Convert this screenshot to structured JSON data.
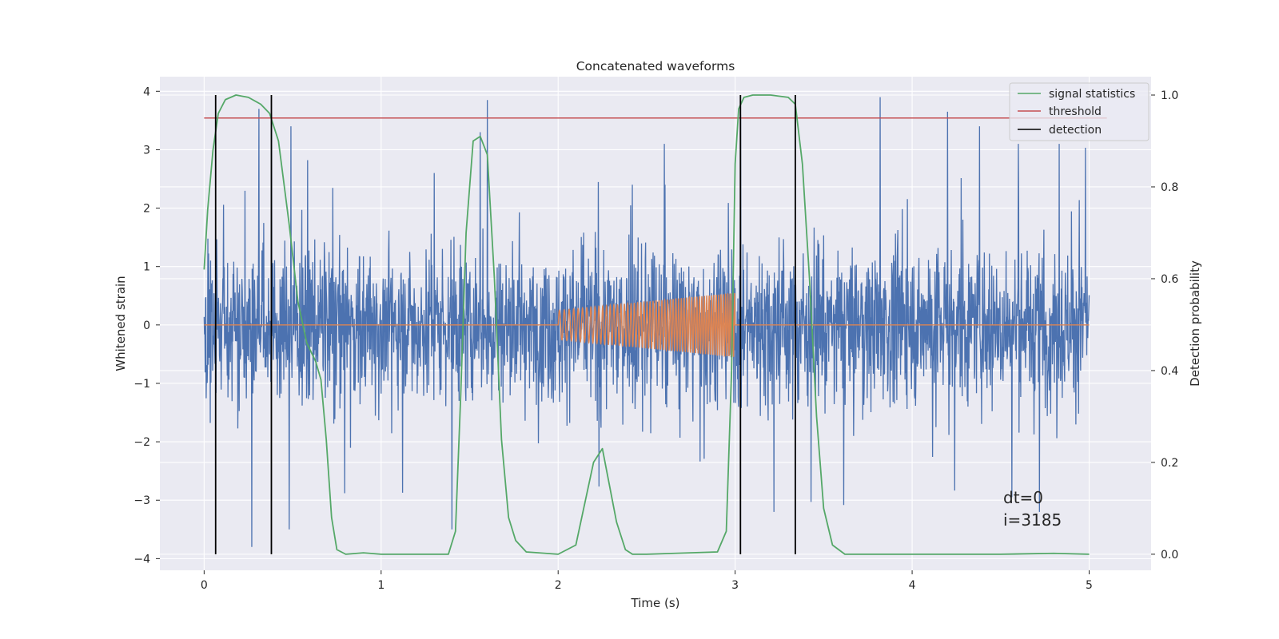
{
  "chart_data": {
    "type": "line",
    "title": "Concatenated waveforms",
    "xlabel": "Time (s)",
    "ylabel": "Whitened strain",
    "ylabel_right": "Detection probability",
    "xlim": [
      -0.25,
      5.35
    ],
    "ylim": [
      -4.2,
      4.25
    ],
    "ylim_right": [
      -0.035,
      1.04
    ],
    "x_ticks": [
      0,
      1,
      2,
      3,
      4,
      5
    ],
    "x_tick_labels": [
      "0",
      "1",
      "2",
      "3",
      "4",
      "5"
    ],
    "y_ticks": [
      -4,
      -3,
      -2,
      -1,
      0,
      1,
      2,
      3,
      4
    ],
    "y_tick_labels": [
      "−4",
      "−3",
      "−2",
      "−1",
      "0",
      "1",
      "2",
      "3",
      "4"
    ],
    "y2_ticks": [
      0.0,
      0.2,
      0.4,
      0.6,
      0.8,
      1.0
    ],
    "y2_tick_labels": [
      "0.0",
      "0.2",
      "0.4",
      "0.6",
      "0.8",
      "1.0"
    ],
    "grid": true,
    "legend_position": "top-right",
    "legend": [
      "signal statistics",
      "threshold",
      "detection"
    ],
    "colors": {
      "strain": "#4c72b0",
      "template": "#dd8452",
      "signal_statistics": "#55a868",
      "threshold": "#c44e52",
      "detection": "#000000",
      "background": "#eaeaf2",
      "grid": "#ffffff"
    },
    "series": [
      {
        "name": "strain",
        "axis": "left",
        "description_range": [
          -4.0,
          4.0
        ],
        "x_range": [
          0,
          5
        ],
        "envelope_typical": 2.3,
        "peaks": [
          [
            0.31,
            3.7
          ],
          [
            0.38,
            3.6
          ],
          [
            0.49,
            3.4
          ],
          [
            1.3,
            2.6
          ],
          [
            1.56,
            3.3
          ],
          [
            1.6,
            3.85
          ],
          [
            2.42,
            2.4
          ],
          [
            2.6,
            3.1
          ],
          [
            3.03,
            3.6
          ],
          [
            3.82,
            3.9
          ],
          [
            4.2,
            3.65
          ],
          [
            4.38,
            3.4
          ],
          [
            4.6,
            3.1
          ],
          [
            4.83,
            3.1
          ],
          [
            0.27,
            -3.8
          ],
          [
            0.48,
            -3.5
          ],
          [
            1.4,
            -3.5
          ],
          [
            3.22,
            -3.2
          ],
          [
            4.72,
            -3.2
          ]
        ]
      },
      {
        "name": "template",
        "axis": "left",
        "x": [
          0,
          2.0,
          2.0,
          3.0,
          3.0,
          5.0
        ],
        "amplitude": [
          0,
          0,
          0.25,
          0.55,
          0,
          0
        ],
        "freq_start_hz": 35,
        "freq_end_hz": 80
      },
      {
        "name": "signal statistics",
        "axis": "right",
        "x": [
          0.0,
          0.02,
          0.05,
          0.08,
          0.12,
          0.18,
          0.25,
          0.32,
          0.37,
          0.42,
          0.48,
          0.53,
          0.58,
          0.63,
          0.66,
          0.69,
          0.72,
          0.75,
          0.8,
          0.9,
          1.0,
          1.38,
          1.42,
          1.45,
          1.48,
          1.52,
          1.56,
          1.6,
          1.64,
          1.68,
          1.72,
          1.76,
          1.82,
          2.0,
          2.1,
          2.15,
          2.2,
          2.25,
          2.28,
          2.33,
          2.38,
          2.42,
          2.46,
          2.5,
          2.9,
          2.95,
          2.98,
          3.0,
          3.02,
          3.05,
          3.1,
          3.2,
          3.3,
          3.34,
          3.38,
          3.42,
          3.46,
          3.5,
          3.55,
          3.62,
          4.0,
          4.5,
          4.8,
          5.0
        ],
        "y": [
          0.62,
          0.75,
          0.88,
          0.96,
          0.99,
          1.0,
          0.995,
          0.98,
          0.96,
          0.9,
          0.72,
          0.55,
          0.46,
          0.42,
          0.38,
          0.25,
          0.08,
          0.01,
          0.0,
          0.003,
          0.0,
          0.0,
          0.05,
          0.35,
          0.7,
          0.9,
          0.91,
          0.87,
          0.6,
          0.25,
          0.08,
          0.03,
          0.005,
          0.0,
          0.02,
          0.11,
          0.2,
          0.23,
          0.17,
          0.07,
          0.01,
          0.0,
          0.0,
          0.0,
          0.005,
          0.05,
          0.4,
          0.85,
          0.97,
          0.995,
          1.0,
          1.0,
          0.995,
          0.98,
          0.85,
          0.6,
          0.3,
          0.1,
          0.02,
          0.0,
          0.0,
          0.0,
          0.002,
          0.0
        ]
      },
      {
        "name": "threshold",
        "axis": "right",
        "x": [
          0,
          5.1
        ],
        "y": [
          0.95,
          0.95
        ]
      },
      {
        "name": "detection",
        "axis": "right",
        "x": [
          0.065,
          0.38,
          3.03,
          3.34
        ],
        "y_range": [
          0.0,
          1.0
        ]
      }
    ],
    "annotations": [
      "dt=0",
      "i=3185"
    ]
  }
}
